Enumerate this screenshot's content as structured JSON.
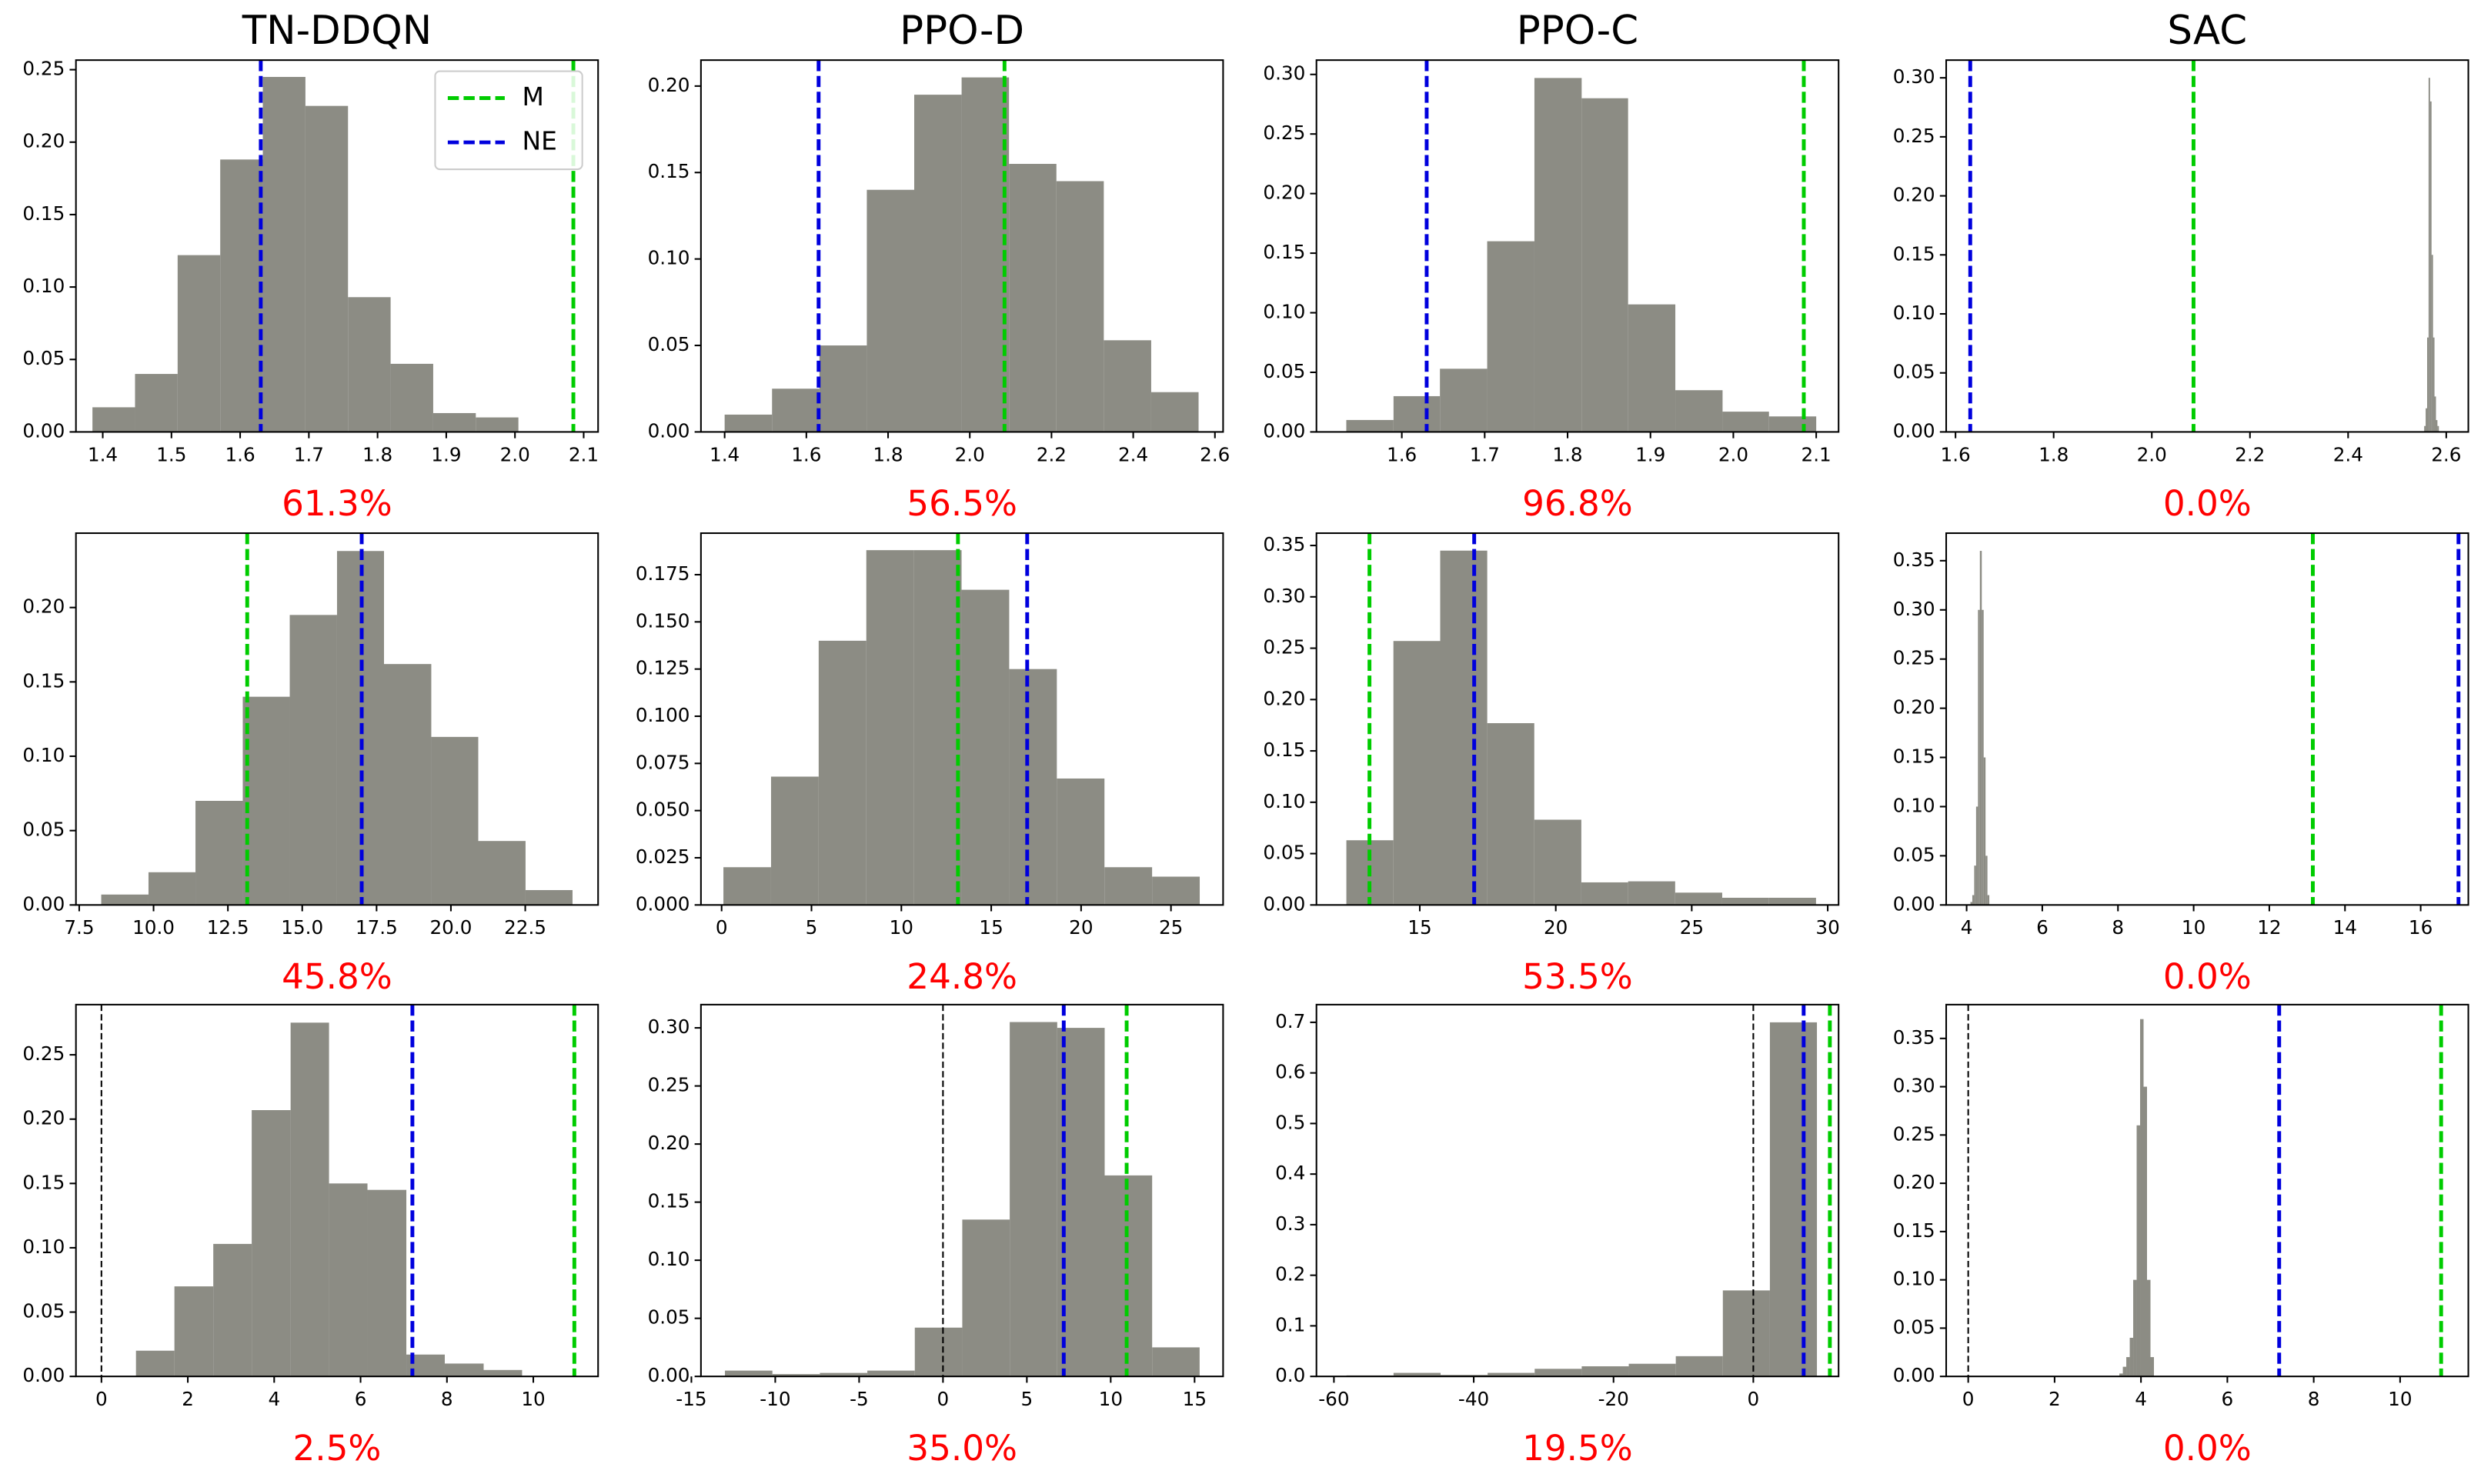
{
  "chart_data": [
    {
      "type": "histogram",
      "title": "TN-DDQN",
      "annotation": "61.3%",
      "color": "#8c8c84",
      "bins": [
        1.385,
        1.447,
        1.509,
        1.571,
        1.633,
        1.695,
        1.757,
        1.819,
        1.881,
        1.943,
        2.005
      ],
      "values": [
        0.017,
        0.04,
        0.122,
        0.188,
        0.245,
        0.225,
        0.093,
        0.047,
        0.013,
        0.01
      ],
      "xlim": [
        1.361,
        2.121
      ],
      "xticks": [
        1.4,
        1.5,
        1.6,
        1.7,
        1.8,
        1.9,
        {
          "value": 2.0,
          "label": "2.0"
        },
        2.1
      ],
      "ylim": [
        0,
        0.2566
      ],
      "yticks": [
        {
          "value": 0,
          "label": "0.00"
        },
        {
          "value": 0.05,
          "label": "0.05"
        },
        {
          "value": 0.1,
          "label": "0.10"
        },
        {
          "value": 0.15,
          "label": "0.15"
        },
        {
          "value": 0.2,
          "label": "0.20"
        },
        {
          "value": 0.25,
          "label": "0.25"
        }
      ],
      "vlines": [
        {
          "x": 1.63,
          "color": "#0000dd"
        },
        {
          "x": 2.085,
          "color": "#00cc00"
        }
      ],
      "legend": [
        {
          "name": "M",
          "color": "#00cc00"
        },
        {
          "name": "NE",
          "color": "#0000dd"
        }
      ],
      "legend_loc": "upper right"
    },
    {
      "type": "histogram",
      "title": "PPO-D",
      "annotation": "56.5%",
      "color": "#8c8c84",
      "bins": [
        1.4,
        1.516,
        1.632,
        1.748,
        1.864,
        1.98,
        2.096,
        2.212,
        2.328,
        2.444,
        2.56
      ],
      "values": [
        0.01,
        0.025,
        0.05,
        0.14,
        0.195,
        0.205,
        0.155,
        0.145,
        0.053,
        0.023
      ],
      "xlim": [
        1.342,
        2.62
      ],
      "xticks": [
        1.4,
        1.6,
        1.8,
        {
          "value": 2.0,
          "label": "2.0"
        },
        2.2,
        2.4,
        2.6
      ],
      "ylim": [
        0,
        0.215
      ],
      "yticks": [
        {
          "value": 0,
          "label": "0.00"
        },
        {
          "value": 0.05,
          "label": "0.05"
        },
        {
          "value": 0.1,
          "label": "0.10"
        },
        {
          "value": 0.15,
          "label": "0.15"
        },
        {
          "value": 0.2,
          "label": "0.20"
        }
      ],
      "vlines": [
        {
          "x": 1.63,
          "color": "#0000dd"
        },
        {
          "x": 2.085,
          "color": "#00cc00"
        }
      ]
    },
    {
      "type": "histogram",
      "title": "PPO-C",
      "annotation": "96.8%",
      "color": "#8c8c84",
      "bins": [
        1.533,
        1.59,
        1.646,
        1.703,
        1.76,
        1.817,
        1.873,
        1.93,
        1.987,
        2.043,
        2.1
      ],
      "values": [
        0.01,
        0.03,
        0.053,
        0.16,
        0.297,
        0.28,
        0.107,
        0.035,
        0.017,
        0.013
      ],
      "xlim": [
        1.497,
        2.127
      ],
      "xticks": [
        1.6,
        1.7,
        1.8,
        1.9,
        {
          "value": 2.0,
          "label": "2.0"
        },
        2.1
      ],
      "ylim": [
        0,
        0.312
      ],
      "yticks": [
        {
          "value": 0,
          "label": "0.00"
        },
        {
          "value": 0.05,
          "label": "0.05"
        },
        {
          "value": 0.1,
          "label": "0.10"
        },
        {
          "value": 0.15,
          "label": "0.15"
        },
        {
          "value": 0.2,
          "label": "0.20"
        },
        {
          "value": 0.25,
          "label": "0.25"
        },
        {
          "value": 0.3,
          "label": "0.30"
        }
      ],
      "vlines": [
        {
          "x": 1.63,
          "color": "#0000dd"
        },
        {
          "x": 2.085,
          "color": "#00cc00"
        }
      ]
    },
    {
      "type": "histogram",
      "title": "SAC",
      "annotation": "0.0%",
      "color": "#8c8c84",
      "bins": [
        2.555,
        2.558,
        2.561,
        2.564,
        2.567,
        2.57,
        2.573,
        2.576,
        2.579,
        2.582,
        2.585
      ],
      "values": [
        0.005,
        0.02,
        0.08,
        0.3,
        0.28,
        0.15,
        0.08,
        0.03,
        0.01,
        0.005
      ],
      "xlim": [
        1.581,
        2.645
      ],
      "xticks": [
        1.6,
        1.8,
        {
          "value": 2.0,
          "label": "2.0"
        },
        2.2,
        2.4,
        2.6
      ],
      "ylim": [
        0,
        0.315
      ],
      "yticks": [
        {
          "value": 0,
          "label": "0.00"
        },
        {
          "value": 0.05,
          "label": "0.05"
        },
        {
          "value": 0.1,
          "label": "0.10"
        },
        {
          "value": 0.15,
          "label": "0.15"
        },
        {
          "value": 0.2,
          "label": "0.20"
        },
        {
          "value": 0.25,
          "label": "0.25"
        },
        {
          "value": 0.3,
          "label": "0.30"
        }
      ],
      "vlines": [
        {
          "x": 1.63,
          "color": "#0000dd"
        },
        {
          "x": 2.085,
          "color": "#00cc00"
        }
      ]
    },
    {
      "type": "histogram",
      "annotation": "45.8%",
      "color": "#8c8c84",
      "bins": [
        8.24,
        9.83,
        11.41,
        13.0,
        14.58,
        16.17,
        17.75,
        19.34,
        20.92,
        22.51,
        24.09
      ],
      "values": [
        0.007,
        0.022,
        0.07,
        0.14,
        0.195,
        0.238,
        0.162,
        0.113,
        0.043,
        0.01
      ],
      "xlim": [
        7.39,
        24.95
      ],
      "xticks": [
        7.5,
        {
          "value": 10,
          "label": "10.0"
        },
        12.5,
        {
          "value": 15,
          "label": "15.0"
        },
        17.5,
        {
          "value": 20,
          "label": "20.0"
        },
        22.5
      ],
      "ylim": [
        0,
        0.25
      ],
      "yticks": [
        {
          "value": 0,
          "label": "0.00"
        },
        {
          "value": 0.05,
          "label": "0.05"
        },
        {
          "value": 0.1,
          "label": "0.10"
        },
        {
          "value": 0.15,
          "label": "0.15"
        },
        {
          "value": 0.2,
          "label": "0.20"
        }
      ],
      "vlines": [
        {
          "x": 13.15,
          "color": "#00cc00"
        },
        {
          "x": 17.0,
          "color": "#0000dd"
        }
      ]
    },
    {
      "type": "histogram",
      "annotation": "24.8%",
      "color": "#8c8c84",
      "bins": [
        0.1,
        2.75,
        5.4,
        8.05,
        10.7,
        13.35,
        16.0,
        18.65,
        21.3,
        23.95,
        26.6
      ],
      "values": [
        0.02,
        0.068,
        0.14,
        0.188,
        0.188,
        0.167,
        0.125,
        0.067,
        0.02,
        0.015
      ],
      "xlim": [
        -1.15,
        27.9
      ],
      "xticks": [
        0,
        5,
        10,
        15,
        20,
        25
      ],
      "ylim": [
        0,
        0.197
      ],
      "yticks": [
        {
          "value": 0,
          "label": "0.000"
        },
        {
          "value": 0.025,
          "label": "0.025"
        },
        {
          "value": 0.05,
          "label": "0.050"
        },
        {
          "value": 0.075,
          "label": "0.075"
        },
        {
          "value": 0.1,
          "label": "0.100"
        },
        {
          "value": 0.125,
          "label": "0.125"
        },
        {
          "value": 0.15,
          "label": "0.150"
        },
        {
          "value": 0.175,
          "label": "0.175"
        }
      ],
      "vlines": [
        {
          "x": 13.15,
          "color": "#00cc00"
        },
        {
          "x": 17.0,
          "color": "#0000dd"
        }
      ]
    },
    {
      "type": "histogram",
      "annotation": "53.5%",
      "color": "#8c8c84",
      "bins": [
        12.3,
        14.03,
        15.75,
        17.48,
        19.21,
        20.94,
        22.66,
        24.39,
        26.12,
        27.84,
        29.57
      ],
      "values": [
        0.063,
        0.257,
        0.345,
        0.177,
        0.083,
        0.022,
        0.023,
        0.012,
        0.007,
        0.007
      ],
      "xlim": [
        11.2,
        30.4
      ],
      "xticks": [
        15,
        20,
        25,
        30
      ],
      "ylim": [
        0,
        0.362
      ],
      "yticks": [
        {
          "value": 0,
          "label": "0.00"
        },
        {
          "value": 0.05,
          "label": "0.05"
        },
        {
          "value": 0.1,
          "label": "0.10"
        },
        {
          "value": 0.15,
          "label": "0.15"
        },
        {
          "value": 0.2,
          "label": "0.20"
        },
        {
          "value": 0.25,
          "label": "0.25"
        },
        {
          "value": 0.3,
          "label": "0.30"
        },
        {
          "value": 0.35,
          "label": "0.35"
        }
      ],
      "vlines": [
        {
          "x": 13.15,
          "color": "#00cc00"
        },
        {
          "x": 17.0,
          "color": "#0000dd"
        }
      ]
    },
    {
      "type": "histogram",
      "annotation": "0.0%",
      "color": "#8c8c84",
      "bins": [
        4.1,
        4.15,
        4.2,
        4.25,
        4.3,
        4.35,
        4.4,
        4.45,
        4.5,
        4.55,
        4.6
      ],
      "values": [
        0.003,
        0.01,
        0.04,
        0.1,
        0.3,
        0.36,
        0.3,
        0.15,
        0.05,
        0.01
      ],
      "xlim": [
        3.46,
        17.26
      ],
      "xticks": [
        4,
        6,
        8,
        10,
        12,
        14,
        16
      ],
      "ylim": [
        0,
        0.378
      ],
      "yticks": [
        {
          "value": 0,
          "label": "0.00"
        },
        {
          "value": 0.05,
          "label": "0.05"
        },
        {
          "value": 0.1,
          "label": "0.10"
        },
        {
          "value": 0.15,
          "label": "0.15"
        },
        {
          "value": 0.2,
          "label": "0.20"
        },
        {
          "value": 0.25,
          "label": "0.25"
        },
        {
          "value": 0.3,
          "label": "0.30"
        },
        {
          "value": 0.35,
          "label": "0.35"
        }
      ],
      "vlines": [
        {
          "x": 13.15,
          "color": "#00cc00"
        },
        {
          "x": 17.0,
          "color": "#0000dd"
        }
      ]
    },
    {
      "type": "histogram",
      "annotation": "2.5%",
      "color": "#8c8c84",
      "bins": [
        0.8,
        1.69,
        2.59,
        3.48,
        4.38,
        5.27,
        6.16,
        7.06,
        7.95,
        8.85,
        9.74
      ],
      "values": [
        0.02,
        0.07,
        0.103,
        0.207,
        0.275,
        0.15,
        0.145,
        0.017,
        0.01,
        0.005
      ],
      "xlim": [
        -0.59,
        11.5
      ],
      "xticks": [
        0,
        2,
        4,
        6,
        8,
        10
      ],
      "ylim": [
        0,
        0.289
      ],
      "yticks": [
        {
          "value": 0,
          "label": "0.00"
        },
        {
          "value": 0.05,
          "label": "0.05"
        },
        {
          "value": 0.1,
          "label": "0.10"
        },
        {
          "value": 0.15,
          "label": "0.15"
        },
        {
          "value": 0.2,
          "label": "0.20"
        },
        {
          "value": 0.25,
          "label": "0.25"
        }
      ],
      "vlines": [
        {
          "x": 0,
          "color": "#000000"
        },
        {
          "x": 7.2,
          "color": "#0000dd"
        },
        {
          "x": 10.95,
          "color": "#00cc00"
        }
      ]
    },
    {
      "type": "histogram",
      "annotation": "35.0%",
      "color": "#8c8c84",
      "bins": [
        -13.0,
        -10.17,
        -7.34,
        -4.51,
        -1.68,
        1.15,
        3.98,
        6.81,
        9.64,
        12.47,
        15.3
      ],
      "values": [
        0.005,
        0.002,
        0.003,
        0.005,
        0.042,
        0.135,
        0.305,
        0.3,
        0.173,
        0.025
      ],
      "xlim": [
        -14.43,
        16.7
      ],
      "xticks": [
        -15,
        -10,
        -5,
        0,
        5,
        10,
        15
      ],
      "ylim": [
        0,
        0.32
      ],
      "yticks": [
        {
          "value": 0,
          "label": "0.00"
        },
        {
          "value": 0.05,
          "label": "0.05"
        },
        {
          "value": 0.1,
          "label": "0.10"
        },
        {
          "value": 0.15,
          "label": "0.15"
        },
        {
          "value": 0.2,
          "label": "0.20"
        },
        {
          "value": 0.25,
          "label": "0.25"
        },
        {
          "value": 0.3,
          "label": "0.30"
        }
      ],
      "vlines": [
        {
          "x": 0,
          "color": "#000000"
        },
        {
          "x": 7.2,
          "color": "#0000dd"
        },
        {
          "x": 10.95,
          "color": "#00cc00"
        }
      ]
    },
    {
      "type": "histogram",
      "annotation": "19.5%",
      "color": "#8c8c84",
      "bins": [
        -58.2,
        -51.47,
        -44.74,
        -38.01,
        -31.28,
        -24.55,
        -17.82,
        -11.09,
        -4.36,
        2.37,
        9.1
      ],
      "values": [
        0.002,
        0.007,
        0.003,
        0.007,
        0.015,
        0.02,
        0.025,
        0.04,
        0.17,
        0.7
      ],
      "xlim": [
        -62.5,
        12.2
      ],
      "xticks": [
        -60,
        -40,
        -20,
        0
      ],
      "ylim": [
        0,
        0.735
      ],
      "yticks": [
        {
          "value": 0,
          "label": "0.0"
        },
        0.1,
        0.2,
        0.3,
        0.4,
        0.5,
        0.6,
        0.7
      ],
      "vlines": [
        {
          "x": 0,
          "color": "#000000"
        },
        {
          "x": 7.2,
          "color": "#0000dd"
        },
        {
          "x": 10.95,
          "color": "#00cc00"
        }
      ]
    },
    {
      "type": "histogram",
      "annotation": "0.0%",
      "color": "#8c8c84",
      "bins": [
        3.5,
        3.58,
        3.66,
        3.74,
        3.82,
        3.9,
        3.98,
        4.06,
        4.14,
        4.22,
        4.3
      ],
      "values": [
        0.003,
        0.01,
        0.02,
        0.04,
        0.1,
        0.26,
        0.37,
        0.3,
        0.1,
        0.02
      ],
      "xlim": [
        -0.51,
        11.58
      ],
      "xticks": [
        0,
        2,
        4,
        6,
        8,
        10
      ],
      "ylim": [
        0,
        0.385
      ],
      "yticks": [
        {
          "value": 0,
          "label": "0.00"
        },
        {
          "value": 0.05,
          "label": "0.05"
        },
        {
          "value": 0.1,
          "label": "0.10"
        },
        {
          "value": 0.15,
          "label": "0.15"
        },
        {
          "value": 0.2,
          "label": "0.20"
        },
        {
          "value": 0.25,
          "label": "0.25"
        },
        {
          "value": 0.3,
          "label": "0.30"
        },
        {
          "value": 0.35,
          "label": "0.35"
        }
      ],
      "vlines": [
        {
          "x": 0,
          "color": "#000000"
        },
        {
          "x": 7.2,
          "color": "#0000dd"
        },
        {
          "x": 10.95,
          "color": "#00cc00"
        }
      ]
    }
  ]
}
